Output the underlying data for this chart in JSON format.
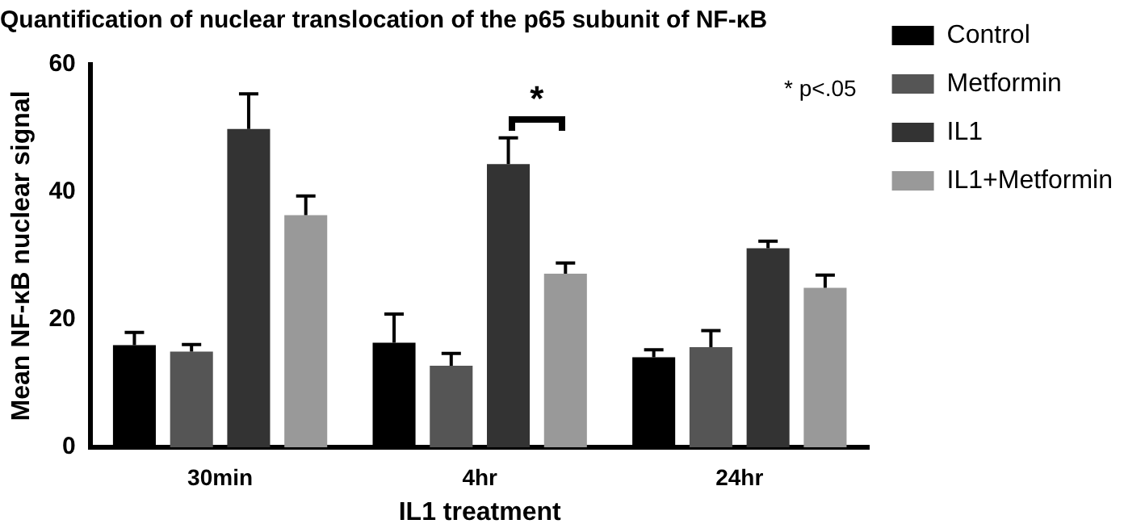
{
  "chart_data": {
    "type": "bar",
    "title": "Quantification of nuclear translocation of the p65 subunit of NF-κB",
    "xlabel": "IL1 treatment",
    "ylabel": "Mean NF-κB nuclear signal",
    "categories": [
      "30min",
      "4hr",
      "24hr"
    ],
    "series": [
      {
        "name": "Control",
        "color": "#000000",
        "values": [
          16.0,
          16.4,
          14.1
        ],
        "errors": [
          2.0,
          4.5,
          1.2
        ]
      },
      {
        "name": "Metformin",
        "color": "#555555",
        "values": [
          15.0,
          12.8,
          15.7
        ],
        "errors": [
          1.1,
          1.9,
          2.6
        ]
      },
      {
        "name": "IL1",
        "color": "#333333",
        "values": [
          49.9,
          44.4,
          31.2
        ],
        "errors": [
          5.5,
          4.1,
          1.1
        ]
      },
      {
        "name": "IL1+Metformin",
        "color": "#999999",
        "values": [
          36.4,
          27.2,
          25.0
        ],
        "errors": [
          3.0,
          1.7,
          2.0
        ]
      }
    ],
    "ylim": [
      0,
      60
    ],
    "yticks": [
      0,
      20,
      40,
      60
    ],
    "grid": false,
    "legend": "right",
    "annotations": [
      "*",
      "* p<.05"
    ]
  }
}
